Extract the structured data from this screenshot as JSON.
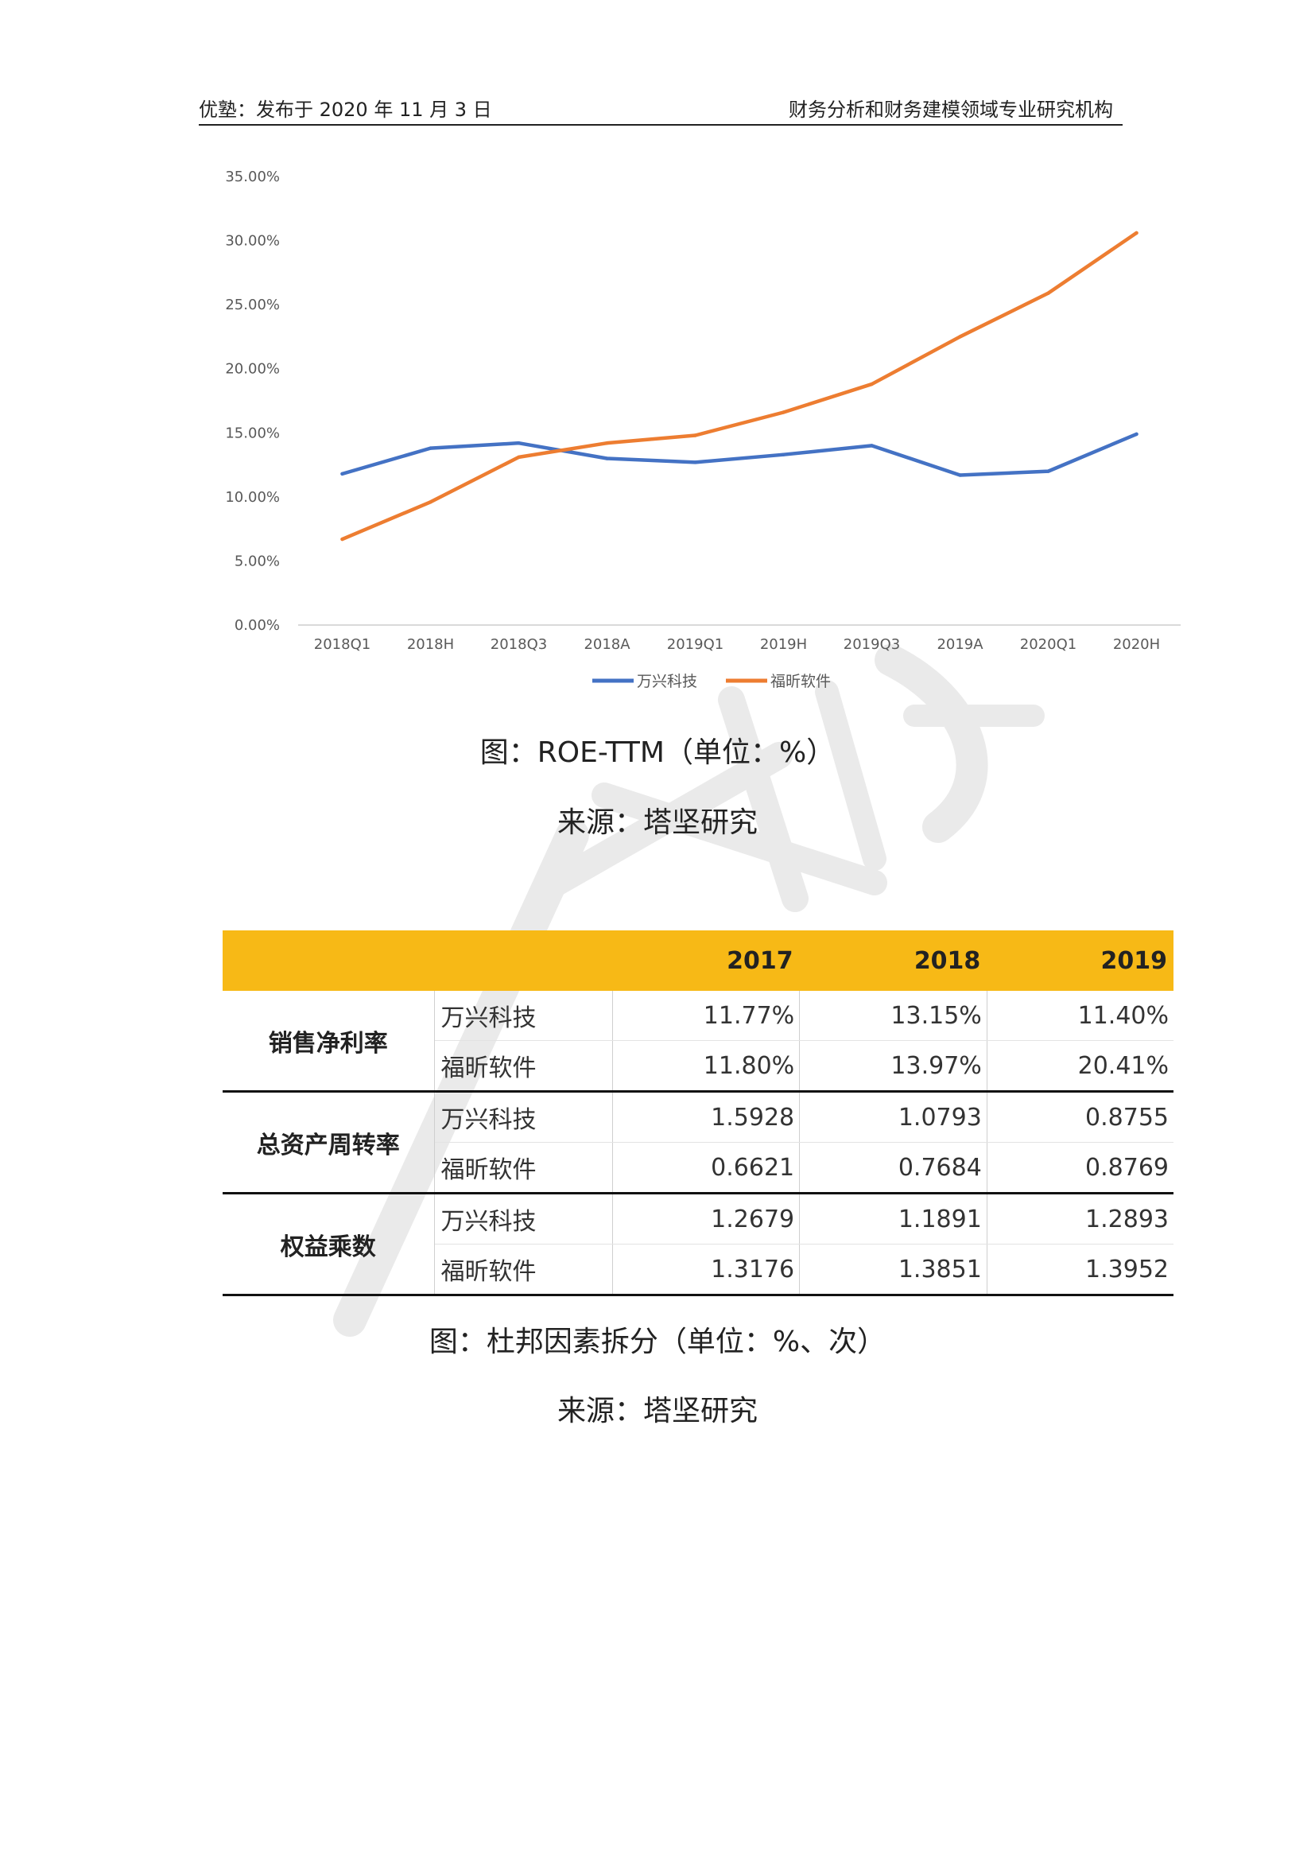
{
  "header": {
    "left": "优塾：发布于 2020 年 11 月 3 日",
    "right": "财务分析和财务建模领域专业研究机构"
  },
  "chart_data": {
    "type": "line",
    "categories": [
      "2018Q1",
      "2018H",
      "2018Q3",
      "2018A",
      "2019Q1",
      "2019H",
      "2019Q3",
      "2019A",
      "2020Q1",
      "2020H"
    ],
    "series": [
      {
        "name": "万兴科技",
        "color": "#4472c4",
        "values": [
          11.8,
          13.8,
          14.2,
          13.0,
          12.7,
          13.3,
          14.0,
          11.7,
          12.0,
          14.9
        ]
      },
      {
        "name": "福昕软件",
        "color": "#ed7d31",
        "values": [
          6.7,
          9.6,
          13.1,
          14.2,
          14.8,
          16.6,
          18.8,
          22.5,
          25.9,
          30.6
        ]
      }
    ],
    "y_ticks": [
      "0.00%",
      "5.00%",
      "10.00%",
      "15.00%",
      "20.00%",
      "25.00%",
      "30.00%",
      "35.00%"
    ],
    "ylim": [
      0,
      35
    ],
    "grid": false,
    "legend": "bottom"
  },
  "figure1": {
    "caption": "图：ROE-TTM（单位：%）",
    "source": "来源：塔坚研究"
  },
  "table": {
    "headers": [
      "",
      "",
      "2017",
      "2018",
      "2019"
    ],
    "groups": [
      {
        "label": "销售净利率",
        "rows": [
          {
            "company": "万兴科技",
            "values": [
              "11.77%",
              "13.15%",
              "11.40%"
            ]
          },
          {
            "company": "福昕软件",
            "values": [
              "11.80%",
              "13.97%",
              "20.41%"
            ]
          }
        ]
      },
      {
        "label": "总资产周转率",
        "rows": [
          {
            "company": "万兴科技",
            "values": [
              "1.5928",
              "1.0793",
              "0.8755"
            ]
          },
          {
            "company": "福昕软件",
            "values": [
              "0.6621",
              "0.7684",
              "0.8769"
            ]
          }
        ]
      },
      {
        "label": "权益乘数",
        "rows": [
          {
            "company": "万兴科技",
            "values": [
              "1.2679",
              "1.1891",
              "1.2893"
            ]
          },
          {
            "company": "福昕软件",
            "values": [
              "1.3176",
              "1.3851",
              "1.3952"
            ]
          }
        ]
      }
    ]
  },
  "figure2": {
    "caption": "图：杜邦因素拆分（单位：%、次）",
    "source": "来源：塔坚研究"
  },
  "colors": {
    "header_fill": "#f7b916",
    "watermark": "#d9d9d9"
  }
}
